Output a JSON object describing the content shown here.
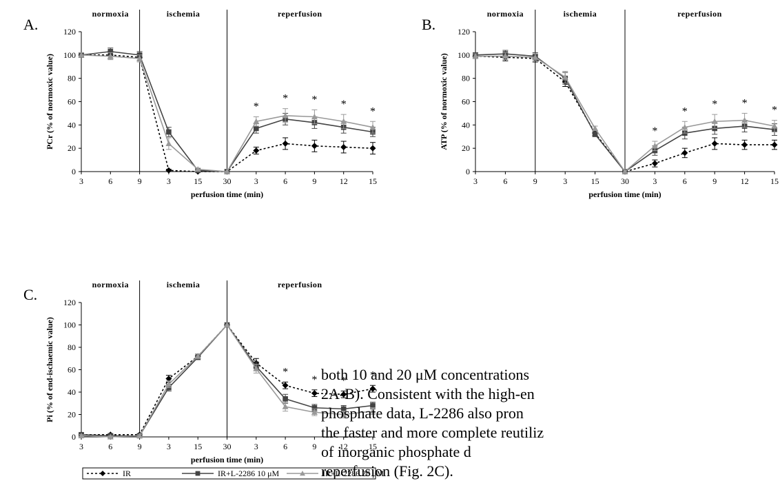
{
  "body_text": [
    "both 10 and 20 μM concentrations",
    "2A-B). Consistent with the high-en",
    "phosphate data, L-2286 also pron",
    "the faster and more complete reutiliz",
    "of      inorganic      phosphate      d",
    "reperfusion (Fig. 2C)."
  ],
  "legend": [
    {
      "name": "IR",
      "color": "#000000",
      "marker": "diamond",
      "dash": "dotted"
    },
    {
      "name": "IR+L-2286 10 μM",
      "color": "#444444",
      "marker": "square",
      "dash": "solid"
    },
    {
      "name": "IR+L-2286 20 μM",
      "color": "#999999",
      "marker": "triangle",
      "dash": "solid"
    }
  ],
  "chart_data": [
    {
      "panel_label": "A.",
      "type": "line",
      "phases": [
        "normoxia",
        "ischemia",
        "reperfusion"
      ],
      "categories": [
        "3",
        "6",
        "9",
        "3",
        "15",
        "30",
        "3",
        "6",
        "9",
        "12",
        "15"
      ],
      "xlabel": "perfusion time (min)",
      "ylabel": "PCr (% of normoxic value)",
      "ylim": [
        0,
        120
      ],
      "yticks": [
        0,
        20,
        40,
        60,
        80,
        100,
        120
      ],
      "phase_dividers_after_index": [
        2,
        5
      ],
      "significance_marker": "*",
      "significant_indices": [
        6,
        7,
        8,
        9,
        10
      ],
      "series": [
        {
          "name": "IR",
          "values": [
            100,
            100,
            98,
            1,
            0,
            0,
            18,
            24,
            22,
            21,
            20
          ],
          "errors": [
            2,
            3,
            3,
            1,
            1,
            0,
            3,
            5,
            5,
            5,
            5
          ]
        },
        {
          "name": "IR+L-2286 10 μM",
          "values": [
            100,
            103,
            100,
            34,
            1,
            0,
            37,
            45,
            42,
            38,
            34
          ],
          "errors": [
            2,
            3,
            3,
            4,
            1,
            0,
            4,
            5,
            5,
            5,
            4
          ]
        },
        {
          "name": "IR+L-2286 20 μM",
          "values": [
            100,
            99,
            97,
            24,
            2,
            0,
            43,
            48,
            47,
            43,
            38
          ],
          "errors": [
            2,
            3,
            3,
            5,
            1,
            0,
            4,
            6,
            6,
            6,
            5
          ]
        }
      ]
    },
    {
      "panel_label": "B.",
      "type": "line",
      "phases": [
        "normoxia",
        "ischemia",
        "reperfusion"
      ],
      "categories": [
        "3",
        "6",
        "9",
        "3",
        "15",
        "30",
        "3",
        "6",
        "9",
        "12",
        "15"
      ],
      "xlabel": "perfusion time (min)",
      "ylabel": "ATP (% of normoxic value)",
      "ylim": [
        0,
        120
      ],
      "yticks": [
        0,
        20,
        40,
        60,
        80,
        100,
        120
      ],
      "phase_dividers_after_index": [
        2,
        5
      ],
      "significance_marker": "*",
      "significant_indices": [
        6,
        7,
        8,
        9,
        10
      ],
      "series": [
        {
          "name": "IR",
          "values": [
            99,
            98,
            97,
            77,
            33,
            0,
            7,
            16,
            24,
            23,
            23
          ],
          "errors": [
            2,
            3,
            3,
            4,
            2,
            0,
            3,
            4,
            5,
            4,
            4
          ]
        },
        {
          "name": "IR+L-2286 10 μM",
          "values": [
            100,
            101,
            99,
            80,
            32,
            0,
            18,
            33,
            37,
            39,
            36
          ],
          "errors": [
            2,
            3,
            3,
            5,
            2,
            0,
            4,
            5,
            5,
            5,
            5
          ]
        },
        {
          "name": "IR+L-2286 20 μM",
          "values": [
            99,
            99,
            98,
            81,
            37,
            0,
            22,
            38,
            43,
            44,
            39
          ],
          "errors": [
            2,
            3,
            3,
            5,
            2,
            0,
            4,
            5,
            6,
            6,
            5
          ]
        }
      ]
    },
    {
      "panel_label": "C.",
      "type": "line",
      "phases": [
        "normoxia",
        "ischemia",
        "reperfusion"
      ],
      "categories": [
        "3",
        "6",
        "9",
        "3",
        "15",
        "30",
        "3",
        "6",
        "9",
        "12",
        "15"
      ],
      "xlabel": "perfusion time (min)",
      "ylabel": "Pi (% of end-ischaemic value)",
      "ylim": [
        0,
        120
      ],
      "yticks": [
        0,
        20,
        40,
        60,
        80,
        100,
        120
      ],
      "phase_dividers_after_index": [
        2,
        5
      ],
      "significance_marker": "*",
      "significant_indices": [
        7,
        8,
        9,
        10
      ],
      "series": [
        {
          "name": "IR",
          "values": [
            2,
            2,
            2,
            52,
            72,
            100,
            66,
            46,
            39,
            38,
            43
          ],
          "errors": [
            1,
            1,
            1,
            3,
            2,
            0,
            4,
            3,
            3,
            3,
            3
          ]
        },
        {
          "name": "IR+L-2286 10 μM",
          "values": [
            2,
            1,
            1,
            44,
            71,
            100,
            63,
            34,
            26,
            25,
            28
          ],
          "errors": [
            1,
            1,
            1,
            3,
            2,
            0,
            4,
            4,
            3,
            3,
            3
          ]
        },
        {
          "name": "IR+L-2286 20 μM",
          "values": [
            1,
            0,
            1,
            47,
            72,
            100,
            61,
            27,
            22,
            20,
            23
          ],
          "errors": [
            1,
            1,
            1,
            3,
            2,
            0,
            4,
            4,
            3,
            3,
            3
          ]
        }
      ]
    }
  ]
}
